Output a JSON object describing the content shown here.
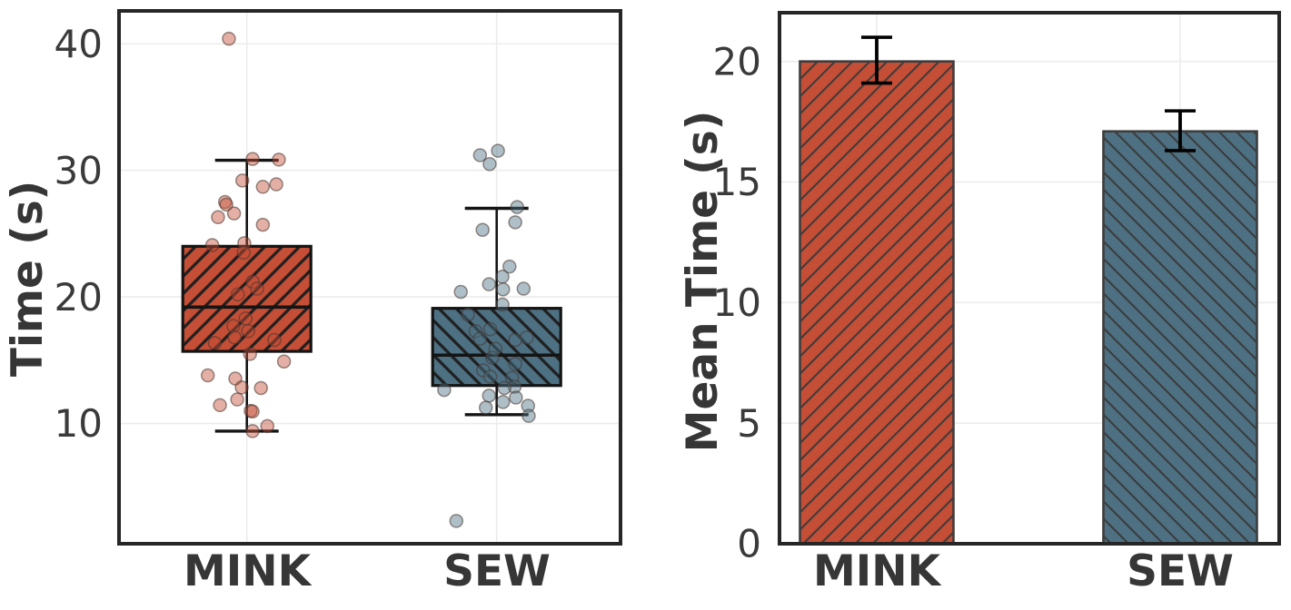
{
  "style": {
    "background": "#ffffff",
    "frame_color": "#262626",
    "grid_color": "#ececec",
    "text_color": "#363636",
    "tick_color": "#3a3a3a",
    "box_line_color": "#141414",
    "bar_edge_color": "#3d3d3d",
    "error_bar_color": "#000000",
    "mink_color": "#c44e36",
    "sew_color": "#4d7082",
    "mink_point_fill": "#e8a396",
    "sew_point_fill": "#a9bcc6"
  },
  "chart_data": [
    {
      "type": "box",
      "title": "",
      "xlabel": "",
      "ylabel": "Time (s)",
      "yticks": [
        10,
        20,
        30,
        40
      ],
      "ylim": [
        0.5,
        42.6
      ],
      "grid": true,
      "categories": [
        "MINK",
        "SEW"
      ],
      "series": [
        {
          "name": "MINK",
          "color": "#c44e36",
          "hatch": "/",
          "q1": 15.7,
          "median": 19.2,
          "q3": 24.0,
          "whisker_low": 9.4,
          "whisker_high": 30.8,
          "points": [
            [
              40.4,
              -0.28
            ],
            [
              30.9,
              0.09
            ],
            [
              30.85,
              0.5
            ],
            [
              29.2,
              -0.07
            ],
            [
              28.9,
              0.46
            ],
            [
              28.7,
              0.25
            ],
            [
              27.5,
              -0.34
            ],
            [
              27.3,
              -0.32
            ],
            [
              26.6,
              -0.2
            ],
            [
              26.3,
              -0.45
            ],
            [
              25.7,
              0.25
            ],
            [
              24.1,
              -0.54
            ],
            [
              24.25,
              -0.04
            ],
            [
              23.5,
              -0.05
            ],
            [
              21.2,
              0.09
            ],
            [
              20.65,
              0.16
            ],
            [
              20.2,
              -0.14
            ],
            [
              18.3,
              -0.02
            ],
            [
              17.7,
              -0.21
            ],
            [
              17.3,
              0.02
            ],
            [
              16.8,
              -0.19
            ],
            [
              16.35,
              -0.5
            ],
            [
              16.6,
              0.43
            ],
            [
              15.5,
              0.05
            ],
            [
              14.9,
              0.58
            ],
            [
              13.8,
              -0.61
            ],
            [
              13.55,
              -0.18
            ],
            [
              12.85,
              -0.08
            ],
            [
              12.8,
              0.22
            ],
            [
              11.9,
              -0.15
            ],
            [
              11.45,
              -0.42
            ],
            [
              11.0,
              0.06
            ],
            [
              10.95,
              0.09
            ],
            [
              9.8,
              0.32
            ],
            [
              9.4,
              0.09
            ]
          ]
        },
        {
          "name": "SEW",
          "color": "#4d7082",
          "hatch": "\\",
          "q1": 13.0,
          "median": 15.4,
          "q3": 19.1,
          "whisker_low": 10.7,
          "whisker_high": 27.0,
          "points": [
            [
              31.2,
              -0.26
            ],
            [
              31.55,
              0.02
            ],
            [
              30.5,
              -0.11
            ],
            [
              27.1,
              0.32
            ],
            [
              25.9,
              0.29
            ],
            [
              25.3,
              -0.22
            ],
            [
              22.4,
              0.2
            ],
            [
              21.6,
              0.09
            ],
            [
              21.0,
              -0.12
            ],
            [
              20.6,
              0.1
            ],
            [
              20.65,
              0.42
            ],
            [
              20.4,
              -0.56
            ],
            [
              19.4,
              0.09
            ],
            [
              18.6,
              -0.45
            ],
            [
              17.45,
              -0.1
            ],
            [
              17.3,
              -0.33
            ],
            [
              16.8,
              0.47
            ],
            [
              16.7,
              -0.26
            ],
            [
              16.6,
              0.29
            ],
            [
              15.9,
              -0.02
            ],
            [
              15.2,
              -0.07
            ],
            [
              14.7,
              0.29
            ],
            [
              14.2,
              -0.21
            ],
            [
              13.7,
              -0.1
            ],
            [
              13.6,
              0.24
            ],
            [
              12.9,
              0.28
            ],
            [
              12.8,
              0.12
            ],
            [
              12.65,
              -0.82
            ],
            [
              12.2,
              -0.12
            ],
            [
              12.05,
              0.3
            ],
            [
              11.7,
              0.1
            ],
            [
              11.4,
              0.49
            ],
            [
              11.25,
              -0.17
            ],
            [
              10.6,
              0.5
            ],
            [
              2.3,
              -0.63
            ]
          ]
        }
      ]
    },
    {
      "type": "bar",
      "title": "",
      "xlabel": "",
      "ylabel": "Mean Time (s)",
      "yticks": [
        0,
        5,
        10,
        15,
        20
      ],
      "ylim": [
        0,
        22.02
      ],
      "grid": true,
      "categories": [
        "MINK",
        "SEW"
      ],
      "series": [
        {
          "name": "MINK",
          "color": "#c44e36",
          "hatch": "/",
          "value": 20.0,
          "err_low": 19.1,
          "err_high": 21.0
        },
        {
          "name": "SEW",
          "color": "#4d7082",
          "hatch": "\\",
          "value": 17.1,
          "err_low": 16.3,
          "err_high": 17.95
        }
      ]
    }
  ]
}
